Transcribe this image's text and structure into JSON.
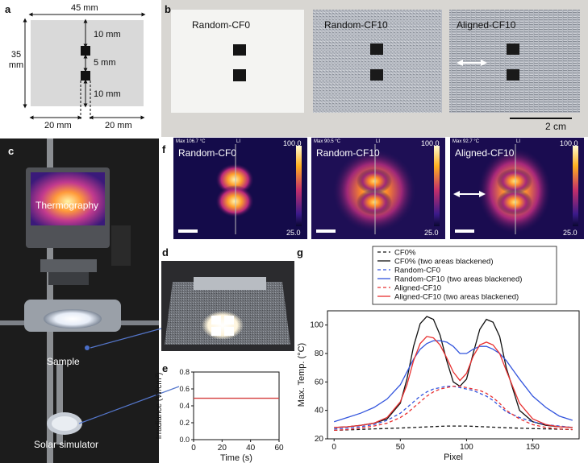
{
  "panels": {
    "a": {
      "label": "a",
      "dims": {
        "width": "45 mm",
        "height": "35 mm",
        "gap_top": "10 mm",
        "gap_mid": "5 mm",
        "gap_bottom": "10 mm",
        "left": "20 mm",
        "right": "20 mm"
      }
    },
    "b": {
      "label": "b",
      "samples": [
        "Random-CF0",
        "Random-CF10",
        "Aligned-CF10"
      ],
      "scale_bar": "2 cm"
    },
    "c": {
      "label": "c",
      "screen_text": "Thermography",
      "sample_label": "Sample",
      "simulator_label": "Solar simulator"
    },
    "d": {
      "label": "d"
    },
    "e": {
      "label": "e"
    },
    "f": {
      "label": "f",
      "images": [
        {
          "name": "Random-CF0",
          "max_text": "Max 106.7 °C",
          "scale_max": "100.0",
          "scale_min": "25.0"
        },
        {
          "name": "Random-CF10",
          "max_text": "Max 90.5 °C",
          "scale_max": "100.0",
          "scale_min": "25.0"
        },
        {
          "name": "Aligned-CF10",
          "max_text": "Max 92.7 °C",
          "scale_max": "100.0",
          "scale_min": "25.0"
        }
      ],
      "tag": "LI"
    },
    "g": {
      "label": "g"
    }
  },
  "colors": {
    "black": "#111111",
    "blue": "#3355dd",
    "red": "#e83030",
    "flat": "#d43c3c"
  },
  "chart_data": [
    {
      "type": "line",
      "title": "",
      "xlabel": "Time (s)",
      "ylabel": "Irradiance (W/cm²)",
      "xlim": [
        0,
        60
      ],
      "ylim": [
        0,
        0.8
      ],
      "x_ticks": [
        "0",
        "20",
        "40",
        "60"
      ],
      "y_ticks": [
        "0.0",
        "0.2",
        "0.4",
        "0.6",
        "0.8"
      ],
      "series": [
        {
          "name": "Irradiance",
          "x": [
            0,
            60
          ],
          "values": [
            0.49,
            0.49
          ]
        }
      ]
    },
    {
      "type": "line",
      "title": "",
      "xlabel": "Pixel",
      "ylabel": "Max. Temp. (°C)",
      "xlim": [
        -5,
        185
      ],
      "ylim": [
        20,
        110
      ],
      "x_ticks": [
        "0",
        "50",
        "100",
        "150"
      ],
      "y_ticks": [
        "20",
        "40",
        "60",
        "80",
        "100"
      ],
      "legend": "top-center",
      "x": [
        0,
        10,
        20,
        30,
        40,
        50,
        55,
        60,
        65,
        70,
        75,
        80,
        85,
        90,
        95,
        100,
        105,
        110,
        115,
        120,
        125,
        130,
        140,
        150,
        160,
        170,
        180
      ],
      "series": [
        {
          "name": "CF0%",
          "style": "dashed",
          "color": "#111111",
          "values": [
            26,
            26.3,
            26.6,
            27,
            27.3,
            27.6,
            27.8,
            28,
            28.2,
            28.4,
            28.6,
            28.8,
            29,
            29,
            29,
            29,
            28.8,
            28.6,
            28.4,
            28.2,
            28,
            27.8,
            27.5,
            27.2,
            27,
            26.8,
            26.5
          ]
        },
        {
          "name": "CF0% (two areas blackened)",
          "style": "solid",
          "color": "#111111",
          "values": [
            28,
            28.5,
            29.5,
            31,
            34,
            45,
            62,
            85,
            101,
            106,
            104,
            93,
            75,
            60,
            57,
            62,
            80,
            97,
            104,
            102,
            92,
            70,
            40,
            32,
            29.5,
            28.5,
            28
          ]
        },
        {
          "name": "Random-CF0",
          "style": "dashed",
          "color": "#3355dd",
          "values": [
            27,
            27.5,
            28.5,
            30,
            33,
            38,
            42,
            46,
            50,
            53,
            55,
            56,
            57,
            57,
            56,
            55,
            54,
            52,
            50,
            47,
            43,
            39,
            35,
            32,
            30,
            29,
            28
          ]
        },
        {
          "name": "Random-CF10 (two areas blackened)",
          "style": "solid",
          "color": "#3355dd",
          "values": [
            32,
            35,
            38,
            42,
            48,
            58,
            67,
            76,
            83,
            87,
            89,
            89,
            88,
            85,
            80,
            80,
            83,
            85,
            85,
            83,
            80,
            75,
            62,
            50,
            42,
            36,
            33
          ]
        },
        {
          "name": "Aligned-CF10",
          "style": "dashed",
          "color": "#e83030",
          "values": [
            26,
            26.5,
            27.5,
            29,
            31,
            35,
            38,
            42,
            46,
            50,
            53,
            55,
            56,
            57,
            57,
            56,
            55,
            54,
            52,
            49,
            45,
            40,
            34,
            30,
            28,
            27,
            26.5
          ]
        },
        {
          "name": "Aligned-CF10 (two areas blackened)",
          "style": "solid",
          "color": "#e83030",
          "values": [
            28,
            28.5,
            29.5,
            31,
            35,
            46,
            58,
            75,
            87,
            92,
            91,
            86,
            77,
            67,
            61,
            66,
            78,
            86,
            88,
            86,
            80,
            68,
            45,
            34,
            30,
            28.5,
            28
          ]
        }
      ]
    }
  ]
}
